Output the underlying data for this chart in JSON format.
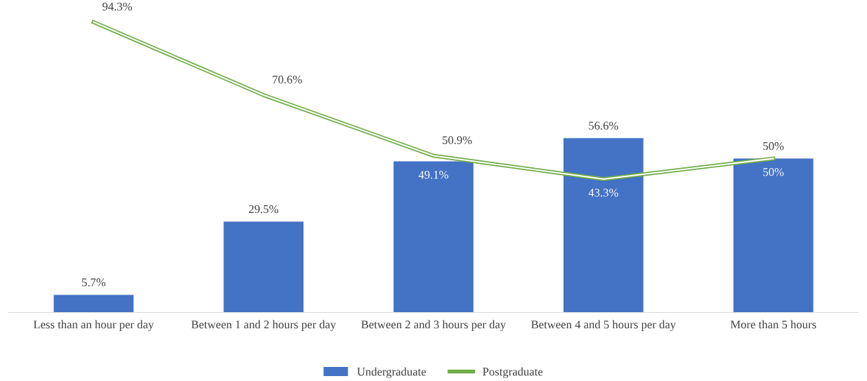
{
  "chart_data": {
    "type": "bar",
    "categories": [
      "Less than an hour per day",
      "Between 1 and 2 hours per day",
      "Between 2 and 3 hours per day",
      "Between 4 and 5 hours per day",
      "More than 5 hours"
    ],
    "series": [
      {
        "name": "Undergraduate",
        "color": "#4472c4",
        "values": [
          5.7,
          29.5,
          49.1,
          56.6,
          50
        ],
        "value_labels": [
          "5.7%",
          "29.5%",
          "49.1%",
          "56.6%",
          "50%"
        ]
      },
      {
        "name": "Postgraduate",
        "type": "line",
        "color": "#70ad47",
        "values": [
          94.3,
          70.6,
          50.9,
          43.3,
          50
        ],
        "value_labels": [
          "94.3%",
          "70.6%",
          "50.9%",
          "43.3%",
          "50%"
        ]
      }
    ],
    "tick_labels": "x",
    "grid": false,
    "legend": "bottom",
    "marker": "none"
  }
}
